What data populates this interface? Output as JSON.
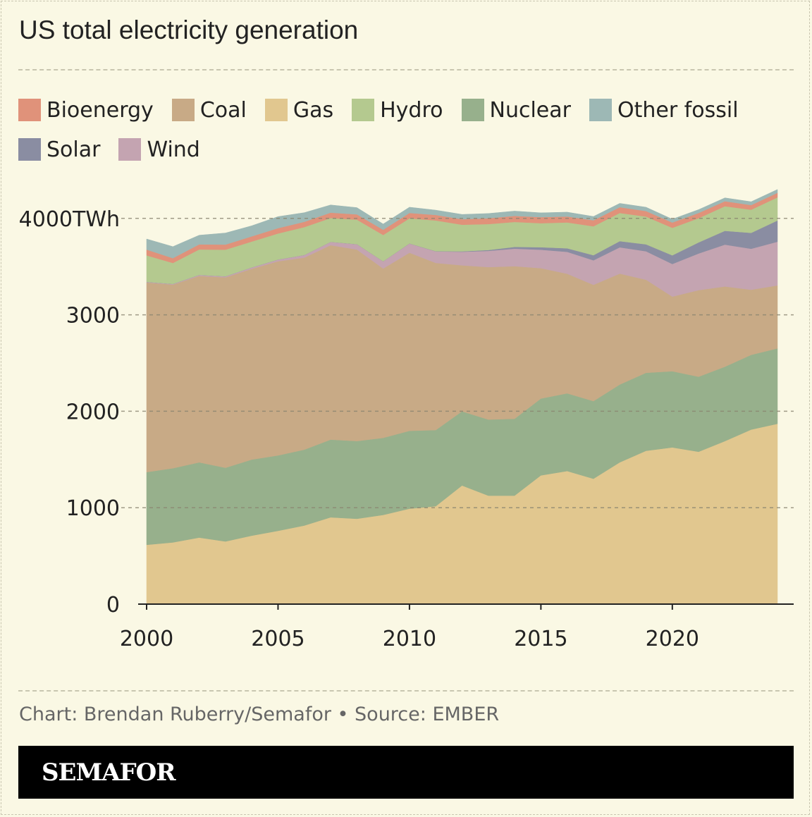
{
  "chart_data": {
    "type": "area",
    "stacked": true,
    "title": "US total electricity generation",
    "ylabel": "",
    "xlabel": "",
    "y_unit": "TWh",
    "ylim": [
      0,
      4400
    ],
    "xlim": [
      2000,
      2024
    ],
    "grid": true,
    "legend_position": "top",
    "yticks": [
      0,
      1000,
      2000,
      3000,
      4000
    ],
    "ytick_labels": [
      "0",
      "1000",
      "2000",
      "3000",
      "4000TWh"
    ],
    "xticks": [
      2000,
      2005,
      2010,
      2015,
      2020
    ],
    "xtick_labels": [
      "2000",
      "2005",
      "2010",
      "2015",
      "2020"
    ],
    "x": [
      2000,
      2001,
      2002,
      2003,
      2004,
      2005,
      2006,
      2007,
      2008,
      2009,
      2010,
      2011,
      2012,
      2013,
      2014,
      2015,
      2016,
      2017,
      2018,
      2019,
      2020,
      2021,
      2022,
      2023,
      2024
    ],
    "legend": [
      "Bioenergy",
      "Coal",
      "Gas",
      "Hydro",
      "Nuclear",
      "Other fossil",
      "Solar",
      "Wind"
    ],
    "series": [
      {
        "name": "Gas",
        "color": "#e1c78f",
        "values": [
          615,
          640,
          690,
          650,
          710,
          760,
          815,
          900,
          885,
          925,
          990,
          1015,
          1230,
          1125,
          1125,
          1335,
          1380,
          1300,
          1470,
          1590,
          1625,
          1580,
          1690,
          1810,
          1870
        ]
      },
      {
        "name": "Nuclear",
        "color": "#97b08c",
        "values": [
          754,
          769,
          780,
          764,
          789,
          782,
          787,
          806,
          806,
          799,
          807,
          790,
          769,
          789,
          797,
          797,
          806,
          805,
          807,
          809,
          790,
          778,
          772,
          775,
          782
        ]
      },
      {
        "name": "Coal",
        "color": "#c8aa86",
        "values": [
          1966,
          1904,
          1933,
          1974,
          1978,
          2013,
          1991,
          2016,
          1986,
          1756,
          1847,
          1733,
          1514,
          1581,
          1582,
          1352,
          1240,
          1206,
          1150,
          965,
          774,
          898,
          832,
          675,
          653
        ]
      },
      {
        "name": "Wind",
        "color": "#c4a4b1",
        "values": [
          6,
          7,
          10,
          11,
          14,
          18,
          27,
          34,
          55,
          74,
          95,
          120,
          141,
          168,
          182,
          191,
          227,
          254,
          273,
          295,
          338,
          380,
          434,
          425,
          453
        ]
      },
      {
        "name": "Solar",
        "color": "#8a8da2",
        "values": [
          0.5,
          0.5,
          0.6,
          0.5,
          0.6,
          0.6,
          0.5,
          0.6,
          0.9,
          0.9,
          1.2,
          1.8,
          4.3,
          9,
          18,
          26,
          37,
          53,
          64,
          72,
          90,
          115,
          143,
          165,
          220
        ]
      },
      {
        "name": "Hydro",
        "color": "#b4c98f",
        "values": [
          275,
          217,
          264,
          276,
          268,
          270,
          289,
          247,
          254,
          273,
          260,
          319,
          276,
          269,
          259,
          249,
          268,
          300,
          292,
          288,
          285,
          251,
          255,
          240,
          240
        ]
      },
      {
        "name": "Bioenergy",
        "color": "#e0927a",
        "values": [
          60,
          50,
          53,
          53,
          54,
          55,
          55,
          56,
          55,
          54,
          56,
          57,
          57,
          60,
          63,
          63,
          62,
          62,
          60,
          57,
          55,
          54,
          52,
          48,
          47
        ]
      },
      {
        "name": "Other fossil",
        "color": "#9db8b5",
        "values": [
          110,
          120,
          95,
          120,
          110,
          120,
          95,
          80,
          70,
          60,
          60,
          50,
          50,
          50,
          50,
          45,
          45,
          40,
          40,
          40,
          35,
          35,
          35,
          35,
          35
        ]
      }
    ]
  },
  "legend_colors": {
    "Bioenergy": "#e0927a",
    "Coal": "#c8aa86",
    "Gas": "#e1c78f",
    "Hydro": "#b4c98f",
    "Nuclear": "#97b08c",
    "Other fossil": "#9db8b5",
    "Solar": "#8a8da2",
    "Wind": "#c4a4b1"
  },
  "footer": {
    "source": "Chart: Brendan Ruberry/Semafor • Source: EMBER",
    "logo": "SEMAFOR"
  }
}
